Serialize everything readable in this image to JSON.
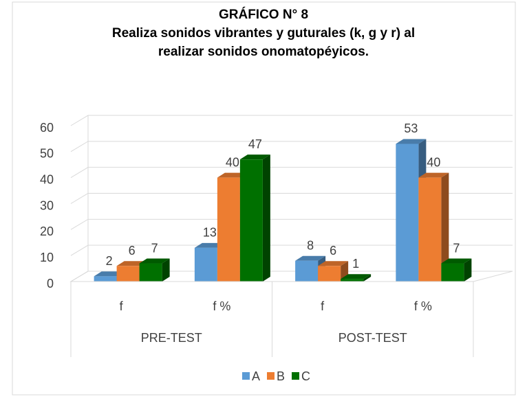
{
  "chart_data": {
    "type": "bar3d",
    "title": "GRÁFICO N° 8",
    "subtitle": [
      "Realiza sonidos vibrantes y guturales (k, g y r) al",
      "realizar sonidos onomatopéyicos."
    ],
    "categories": [
      "f",
      "f %",
      "f",
      "f %"
    ],
    "category_groups": [
      "PRE-TEST",
      "POST-TEST"
    ],
    "series": [
      {
        "name": "A",
        "color": "#5b9bd5",
        "values": [
          2,
          13,
          8,
          53
        ]
      },
      {
        "name": "B",
        "color": "#ed7d31",
        "values": [
          6,
          40,
          6,
          40
        ]
      },
      {
        "name": "C",
        "color": "#007000",
        "values": [
          7,
          47,
          1,
          7
        ]
      }
    ],
    "ylim": [
      0,
      60
    ],
    "yticks": [
      0,
      10,
      20,
      30,
      40,
      50,
      60
    ],
    "grid": true,
    "legend": "bottom"
  }
}
